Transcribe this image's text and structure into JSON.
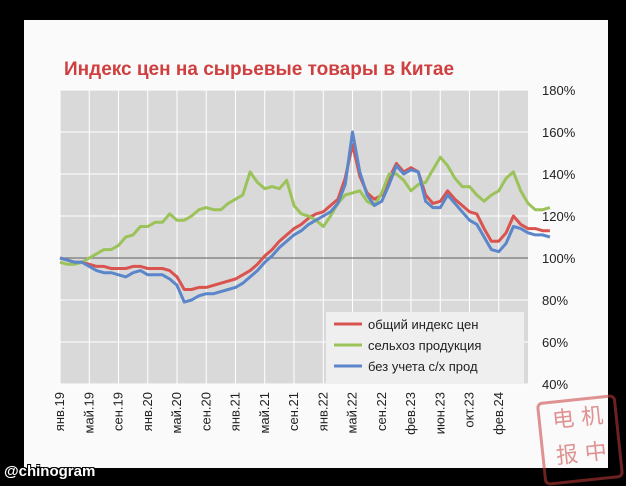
{
  "watermark": "@chinogram",
  "seal": {
    "text": "电 机 报 中"
  },
  "chart_data": {
    "type": "line",
    "title": "Индекс цен на сырьевые товары в Китае",
    "x_tick_labels": [
      "янв.19",
      "май.19",
      "сен.19",
      "янв.20",
      "май.20",
      "сен.20",
      "янв.21",
      "май.21",
      "сен.21",
      "янв.22",
      "май.22",
      "сен.22",
      "фев.23",
      "июн.23",
      "окт.23",
      "фев.24"
    ],
    "y_tick_labels": [
      "40%",
      "60%",
      "80%",
      "100%",
      "120%",
      "140%",
      "160%",
      "180%"
    ],
    "ylim": [
      40,
      180
    ],
    "xlim": [
      0,
      64
    ],
    "grid": true,
    "legend_position": "bottom-right",
    "reference_line": 100,
    "series": [
      {
        "name": "общий индекс цен",
        "color": "#d9534f",
        "values": [
          100,
          99,
          98,
          98,
          97,
          96,
          96,
          95,
          95,
          95,
          96,
          96,
          95,
          95,
          95,
          94,
          91,
          85,
          85,
          86,
          86,
          87,
          88,
          89,
          90,
          92,
          94,
          97,
          101,
          104,
          108,
          111,
          114,
          116,
          119,
          121,
          122,
          125,
          128,
          138,
          154,
          139,
          131,
          128,
          130,
          138,
          145,
          141,
          143,
          141,
          130,
          126,
          127,
          132,
          128,
          125,
          122,
          121,
          114,
          108,
          108,
          112,
          120,
          116,
          114,
          114,
          113,
          113
        ]
      },
      {
        "name": "сельхоз продукция",
        "color": "#9bc35a",
        "values": [
          98,
          97,
          97,
          98,
          100,
          102,
          104,
          104,
          106,
          110,
          111,
          115,
          115,
          117,
          117,
          121,
          118,
          118,
          120,
          123,
          124,
          123,
          123,
          126,
          128,
          130,
          141,
          136,
          133,
          134,
          133,
          137,
          125,
          121,
          120,
          118,
          115,
          120,
          126,
          130,
          131,
          132,
          127,
          125,
          131,
          140,
          140,
          137,
          132,
          135,
          136,
          142,
          148,
          144,
          138,
          134,
          134,
          130,
          127,
          130,
          132,
          138,
          141,
          132,
          126,
          123,
          123,
          124
        ]
      },
      {
        "name": "без учета с/х прод",
        "color": "#5b86c9",
        "values": [
          100,
          99,
          98,
          98,
          96,
          94,
          93,
          93,
          92,
          91,
          93,
          94,
          92,
          92,
          92,
          90,
          87,
          79,
          80,
          82,
          83,
          83,
          84,
          85,
          86,
          88,
          91,
          94,
          98,
          101,
          105,
          108,
          111,
          113,
          116,
          118,
          120,
          122,
          126,
          135,
          160,
          141,
          130,
          125,
          127,
          135,
          144,
          140,
          142,
          141,
          127,
          124,
          124,
          130,
          126,
          122,
          118,
          116,
          110,
          104,
          103,
          107,
          115,
          114,
          112,
          111,
          111,
          110
        ]
      }
    ]
  }
}
